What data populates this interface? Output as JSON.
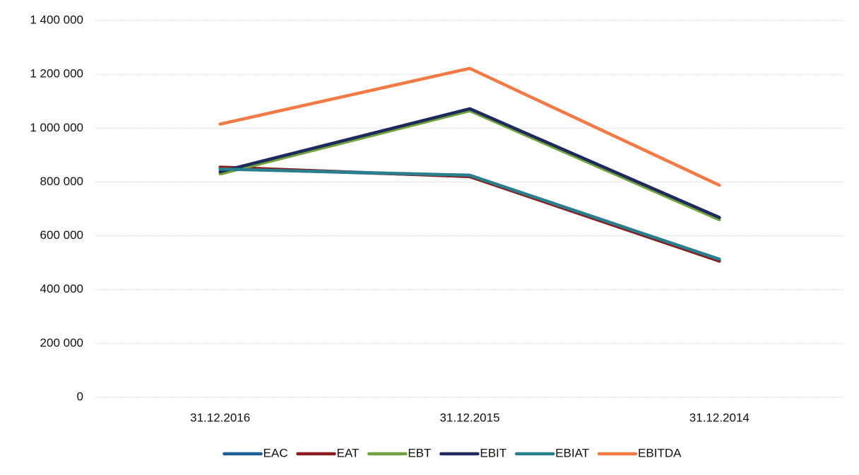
{
  "chart_data": {
    "type": "line",
    "categories": [
      "31.12.2016",
      "31.12.2015",
      "31.12.2014"
    ],
    "series": [
      {
        "name": "EAC",
        "color": "#1f5b94",
        "values": [
          850000,
          822000,
          512000
        ]
      },
      {
        "name": "EAT",
        "color": "#8b1a1a",
        "values": [
          855000,
          820000,
          506000
        ]
      },
      {
        "name": "EBT",
        "color": "#6fa33b",
        "values": [
          830000,
          1065000,
          660000
        ]
      },
      {
        "name": "EBIT",
        "color": "#1e2a5e",
        "values": [
          838000,
          1072000,
          668000
        ]
      },
      {
        "name": "EBIAT",
        "color": "#2a7f8f",
        "values": [
          848000,
          825000,
          513000
        ]
      },
      {
        "name": "EBITDA",
        "color": "#f47a45",
        "values": [
          1015000,
          1222000,
          788000
        ]
      }
    ],
    "ylim": [
      0,
      1400000
    ],
    "yticks": [
      0,
      {
        "value": 200000,
        "label": "200 000"
      },
      {
        "value": 400000,
        "label": "400 000"
      },
      {
        "value": 600000,
        "label": "600 000"
      },
      {
        "value": 800000,
        "label": "800 000"
      },
      {
        "value": 1000000,
        "label": "1 000 000"
      },
      {
        "value": 1200000,
        "label": "1 200 000"
      },
      {
        "value": 1400000,
        "label": "1 400 000"
      }
    ],
    "grid": true,
    "legend": "bottom"
  }
}
